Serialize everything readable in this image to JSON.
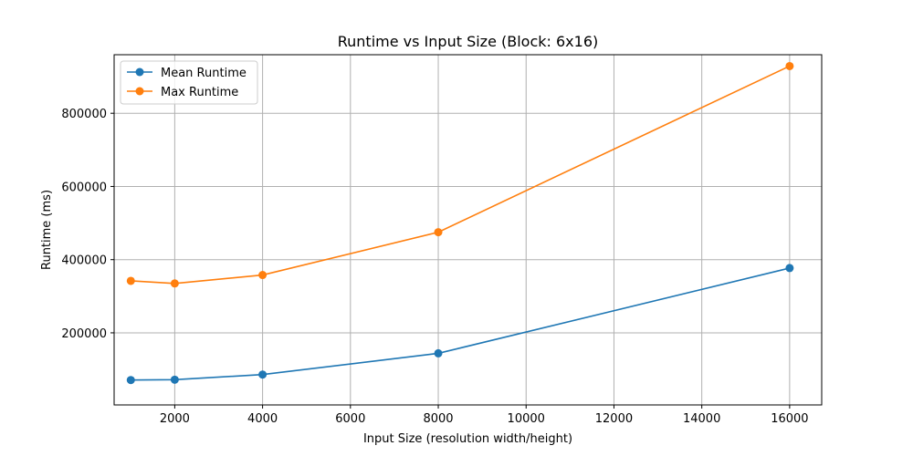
{
  "chart_data": {
    "type": "line",
    "title": "Runtime vs Input Size (Block: 6x16)",
    "xlabel": "Input Size (resolution width/height)",
    "ylabel": "Runtime (ms)",
    "x": [
      1000,
      2000,
      4000,
      8000,
      16000
    ],
    "xlim": [
      620,
      16730
    ],
    "ylim": [
      3000,
      960000
    ],
    "xticks": [
      2000,
      4000,
      6000,
      8000,
      10000,
      12000,
      14000,
      16000
    ],
    "yticks": [
      200000,
      400000,
      600000,
      800000
    ],
    "xtick_labels": [
      "2000",
      "4000",
      "6000",
      "8000",
      "10000",
      "12000",
      "14000",
      "16000"
    ],
    "ytick_labels": [
      "200000",
      "400000",
      "600000",
      "800000"
    ],
    "grid": true,
    "legend_position": "top-left",
    "series": [
      {
        "name": "Mean Runtime",
        "color": "#1f77b4",
        "marker": "circle",
        "values": [
          71000,
          72000,
          86000,
          144000,
          377000
        ]
      },
      {
        "name": "Max Runtime",
        "color": "#ff7f0e",
        "marker": "circle",
        "values": [
          342000,
          335000,
          358000,
          475000,
          929000
        ]
      }
    ]
  }
}
